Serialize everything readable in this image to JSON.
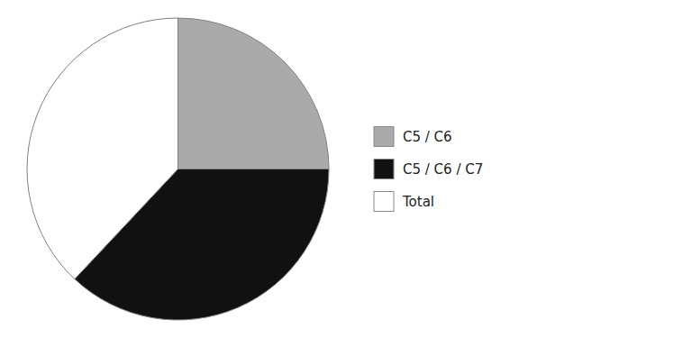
{
  "chart_data": {
    "type": "pie",
    "categories": [
      "C5 / C6",
      "C5 / C6 / C7",
      "Total"
    ],
    "values": [
      25,
      37,
      38
    ],
    "colors": [
      "#aaaaaa",
      "#111111",
      "#ffffff"
    ],
    "legend": "right"
  }
}
